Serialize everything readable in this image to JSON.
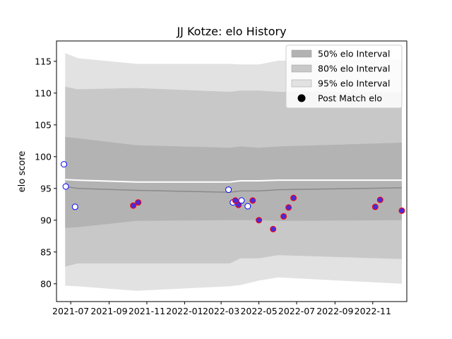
{
  "chart_data": {
    "type": "area",
    "title": "JJ Kotze: elo History",
    "xlabel": "",
    "ylabel": "elo score",
    "ylim": [
      77.2,
      118.2
    ],
    "xlim": [
      "2021-06-08",
      "2022-12-26"
    ],
    "x_ticks": [
      "2021-07",
      "2021-09",
      "2021-11",
      "2022-01",
      "2022-03",
      "2022-05",
      "2022-07",
      "2022-09",
      "2022-11"
    ],
    "y_ticks": [
      80,
      85,
      90,
      95,
      100,
      105,
      110,
      115
    ],
    "grid": false,
    "legend_position": "top-right",
    "legend": [
      {
        "label": "50% elo Interval",
        "kind": "patch",
        "color": "#b3b3b3"
      },
      {
        "label": "80% elo Interval",
        "kind": "patch",
        "color": "#c8c8c8"
      },
      {
        "label": "95% elo Interval",
        "kind": "patch",
        "color": "#e2e2e2"
      },
      {
        "label": "Post Match elo",
        "kind": "marker",
        "color": "#000000"
      }
    ],
    "bands": {
      "dates": [
        "2021-06-22",
        "2021-07-12",
        "2021-10-15",
        "2022-03-15",
        "2022-04-01",
        "2022-05-01",
        "2022-06-01",
        "2022-12-18"
      ],
      "p95_low": [
        79.7,
        79.6,
        78.9,
        79.6,
        79.8,
        80.5,
        81.0,
        80.0
      ],
      "p95_high": [
        116.3,
        115.5,
        114.6,
        114.6,
        114.5,
        114.5,
        115.1,
        115.3
      ],
      "p80_low": [
        82.7,
        83.2,
        83.2,
        83.2,
        84.0,
        84.0,
        84.5,
        83.9
      ],
      "p80_high": [
        111.0,
        110.6,
        110.8,
        110.2,
        110.4,
        110.4,
        110.2,
        110.1
      ],
      "p50_low": [
        88.8,
        88.9,
        89.9,
        90.0,
        90.0,
        90.0,
        89.9,
        90.0
      ],
      "p50_high": [
        103.1,
        102.9,
        101.8,
        101.4,
        101.6,
        101.4,
        101.6,
        102.2
      ],
      "mean": [
        95.3,
        95.0,
        94.7,
        94.4,
        94.6,
        94.6,
        94.8,
        95.1
      ],
      "upper_line": [
        96.4,
        96.3,
        96.0,
        96.0,
        96.2,
        96.2,
        96.3,
        96.3
      ]
    },
    "series": [
      {
        "name": "Post Match elo",
        "points": [
          {
            "date": "2021-06-20",
            "elo": 98.8,
            "style": "initial"
          },
          {
            "date": "2021-06-23",
            "elo": 95.3,
            "style": "initial"
          },
          {
            "date": "2021-07-08",
            "elo": 92.1,
            "style": "initial"
          },
          {
            "date": "2021-10-10",
            "elo": 92.3,
            "style": "match"
          },
          {
            "date": "2021-10-18",
            "elo": 92.8,
            "style": "match"
          },
          {
            "date": "2022-03-13",
            "elo": 94.8,
            "style": "initial"
          },
          {
            "date": "2022-03-20",
            "elo": 92.8,
            "style": "initial"
          },
          {
            "date": "2022-03-24",
            "elo": 93.1,
            "style": "match"
          },
          {
            "date": "2022-03-29",
            "elo": 92.4,
            "style": "match"
          },
          {
            "date": "2022-04-03",
            "elo": 93.1,
            "style": "initial"
          },
          {
            "date": "2022-04-13",
            "elo": 92.2,
            "style": "initial"
          },
          {
            "date": "2022-04-21",
            "elo": 93.1,
            "style": "match"
          },
          {
            "date": "2022-05-01",
            "elo": 90.0,
            "style": "match"
          },
          {
            "date": "2022-05-24",
            "elo": 88.6,
            "style": "match"
          },
          {
            "date": "2022-06-10",
            "elo": 90.6,
            "style": "match"
          },
          {
            "date": "2022-06-18",
            "elo": 92.0,
            "style": "match"
          },
          {
            "date": "2022-06-26",
            "elo": 93.5,
            "style": "match"
          },
          {
            "date": "2022-11-05",
            "elo": 92.1,
            "style": "match"
          },
          {
            "date": "2022-11-13",
            "elo": 93.2,
            "style": "match"
          },
          {
            "date": "2022-12-18",
            "elo": 91.5,
            "style": "match"
          }
        ]
      }
    ],
    "colors": {
      "p95": "#e2e2e2",
      "p80": "#c8c8c8",
      "p50": "#b3b3b3",
      "mean_line": "#8a8a8a",
      "upper_line": "#ffffff",
      "match_fill": "#4b2bd6",
      "match_edge": "#ff0000",
      "initial_fill": "#ffffff",
      "initial_edge": "#0000ff"
    }
  }
}
